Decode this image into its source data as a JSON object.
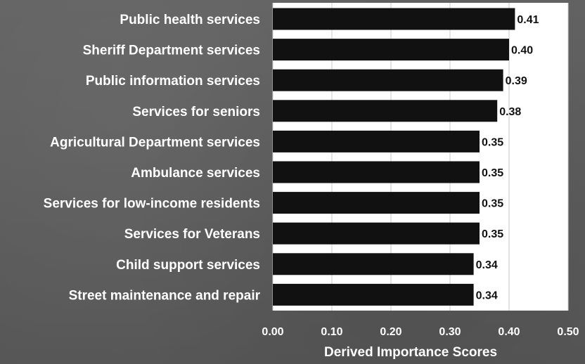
{
  "colors": {
    "background": "#5b5b5b",
    "plot_area": "#ffffff",
    "bar": "#111111",
    "text": "#ffffff",
    "value_text": "#111111",
    "gridline": "#c9c9c9"
  },
  "chart_data": {
    "type": "bar",
    "orientation": "horizontal",
    "categories": [
      "Public health services",
      "Sheriff Department services",
      "Public information services",
      "Services for seniors",
      "Agricultural Department services",
      "Ambulance services",
      "Services for low-income residents",
      "Services for Veterans",
      "Child support services",
      "Street maintenance and repair"
    ],
    "values": [
      0.41,
      0.4,
      0.39,
      0.38,
      0.35,
      0.35,
      0.35,
      0.35,
      0.34,
      0.34
    ],
    "value_labels": [
      "0.41",
      "0.40",
      "0.39",
      "0.38",
      "0.35",
      "0.35",
      "0.35",
      "0.35",
      "0.34",
      "0.34"
    ],
    "xlabel": "Derived Importance Scores",
    "ylabel": "",
    "xlim": [
      0,
      0.5
    ],
    "xticks": [
      "0.00",
      "0.10",
      "0.20",
      "0.30",
      "0.40",
      "0.50"
    ],
    "grid": true
  }
}
